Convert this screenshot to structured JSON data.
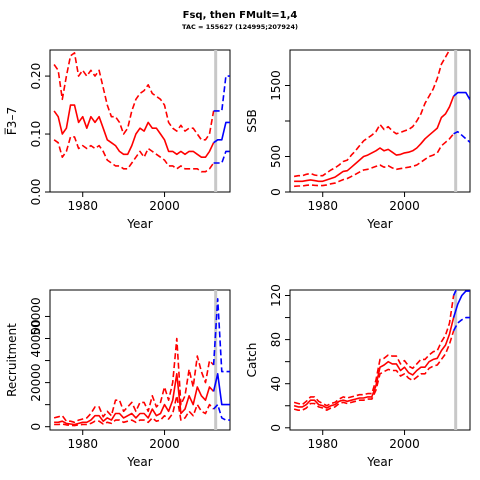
{
  "title": "Fsq, then FMult=1,4",
  "subtitle": "TAC = 155627 (124995;207924)",
  "colors": {
    "historical": "#ff0000",
    "projection": "#0000ff",
    "marker": "#c8c8c8"
  },
  "chart_data": [
    {
      "type": "line",
      "name": "fbar",
      "xlabel": "Year",
      "ylabel": "F̅3–7",
      "xlim": [
        1972,
        2016
      ],
      "ylim": [
        0,
        0.245
      ],
      "xticks": [
        1980,
        2000
      ],
      "yticks": [
        0,
        0.1,
        0.2
      ],
      "ytick_labels": [
        "0.00",
        "0.10",
        "0.20"
      ],
      "grid": false,
      "marker_year": 2012.5,
      "historical": {
        "x": [
          1973,
          1974,
          1975,
          1976,
          1977,
          1978,
          1979,
          1980,
          1981,
          1982,
          1983,
          1984,
          1985,
          1986,
          1987,
          1988,
          1989,
          1990,
          1991,
          1992,
          1993,
          1994,
          1995,
          1996,
          1997,
          1998,
          1999,
          2000,
          2001,
          2002,
          2003,
          2004,
          2005,
          2006,
          2007,
          2008,
          2009,
          2010,
          2011,
          2012
        ],
        "mid": [
          0.14,
          0.13,
          0.1,
          0.11,
          0.15,
          0.15,
          0.12,
          0.13,
          0.11,
          0.13,
          0.12,
          0.13,
          0.11,
          0.09,
          0.085,
          0.08,
          0.07,
          0.065,
          0.065,
          0.08,
          0.1,
          0.11,
          0.105,
          0.12,
          0.11,
          0.11,
          0.1,
          0.09,
          0.07,
          0.07,
          0.065,
          0.07,
          0.065,
          0.07,
          0.07,
          0.065,
          0.06,
          0.06,
          0.07,
          0.085
        ],
        "upper": [
          0.22,
          0.21,
          0.16,
          0.2,
          0.235,
          0.24,
          0.2,
          0.21,
          0.2,
          0.21,
          0.2,
          0.21,
          0.18,
          0.15,
          0.13,
          0.13,
          0.12,
          0.1,
          0.11,
          0.14,
          0.16,
          0.17,
          0.175,
          0.185,
          0.17,
          0.165,
          0.16,
          0.15,
          0.12,
          0.11,
          0.105,
          0.115,
          0.105,
          0.11,
          0.11,
          0.1,
          0.09,
          0.09,
          0.1,
          0.14
        ],
        "lower": [
          0.09,
          0.085,
          0.06,
          0.07,
          0.095,
          0.095,
          0.075,
          0.08,
          0.075,
          0.08,
          0.075,
          0.08,
          0.07,
          0.055,
          0.05,
          0.045,
          0.045,
          0.04,
          0.04,
          0.05,
          0.06,
          0.07,
          0.06,
          0.075,
          0.07,
          0.065,
          0.06,
          0.055,
          0.045,
          0.045,
          0.04,
          0.045,
          0.04,
          0.04,
          0.04,
          0.04,
          0.035,
          0.035,
          0.04,
          0.05
        ]
      },
      "projection": {
        "x": [
          2012,
          2013,
          2014,
          2015,
          2016
        ],
        "mid": [
          0.085,
          0.09,
          0.09,
          0.12,
          0.12
        ],
        "upper": [
          0.14,
          0.14,
          0.14,
          0.2,
          0.2
        ],
        "lower": [
          0.05,
          0.05,
          0.05,
          0.07,
          0.07
        ]
      }
    },
    {
      "type": "line",
      "name": "ssb",
      "xlabel": "Year",
      "ylabel": "SSB",
      "xlim": [
        1972,
        2016
      ],
      "ylim": [
        0,
        2000
      ],
      "xticks": [
        1980,
        2000
      ],
      "yticks": [
        0,
        500,
        1000,
        1500
      ],
      "ytick_labels": [
        "0",
        "500",
        "",
        "1500"
      ],
      "grid": false,
      "marker_year": 2012.5,
      "historical": {
        "x": [
          1973,
          1974,
          1975,
          1976,
          1977,
          1978,
          1979,
          1980,
          1981,
          1982,
          1983,
          1984,
          1985,
          1986,
          1987,
          1988,
          1989,
          1990,
          1991,
          1992,
          1993,
          1994,
          1995,
          1996,
          1997,
          1998,
          1999,
          2000,
          2001,
          2002,
          2003,
          2004,
          2005,
          2006,
          2007,
          2008,
          2009,
          2010,
          2011,
          2012
        ],
        "mid": [
          150,
          150,
          150,
          160,
          170,
          160,
          150,
          150,
          170,
          190,
          210,
          250,
          290,
          300,
          350,
          400,
          450,
          500,
          520,
          550,
          580,
          620,
          580,
          600,
          560,
          520,
          530,
          550,
          560,
          580,
          620,
          680,
          750,
          800,
          850,
          900,
          1050,
          1100,
          1200,
          1350
        ],
        "upper": [
          220,
          230,
          230,
          250,
          260,
          240,
          230,
          230,
          270,
          310,
          340,
          380,
          430,
          450,
          520,
          580,
          650,
          720,
          760,
          800,
          850,
          950,
          880,
          920,
          860,
          820,
          840,
          860,
          880,
          920,
          1000,
          1100,
          1250,
          1350,
          1450,
          1600,
          1800,
          1900,
          2000,
          2150
        ],
        "lower": [
          80,
          85,
          85,
          95,
          100,
          95,
          90,
          90,
          100,
          115,
          125,
          150,
          175,
          190,
          220,
          250,
          280,
          310,
          320,
          340,
          360,
          380,
          350,
          370,
          340,
          320,
          330,
          340,
          350,
          360,
          380,
          420,
          460,
          500,
          520,
          550,
          650,
          700,
          750,
          820
        ]
      },
      "projection": {
        "x": [
          2012,
          2013,
          2014,
          2015,
          2016
        ],
        "mid": [
          1350,
          1400,
          1400,
          1400,
          1300
        ],
        "upper": [
          2150,
          2200,
          2200,
          2150,
          2050
        ],
        "lower": [
          820,
          850,
          800,
          750,
          700
        ]
      }
    },
    {
      "type": "line",
      "name": "recruitment",
      "xlabel": "Year",
      "ylabel": "Recruitment",
      "xlim": [
        1972,
        2016
      ],
      "ylim": [
        -1500,
        62000
      ],
      "xticks": [
        1980,
        2000
      ],
      "yticks": [
        0,
        10000,
        20000,
        30000,
        40000,
        50000
      ],
      "ytick_labels": [
        "0",
        "",
        "20000",
        "",
        "40000",
        "50000"
      ],
      "grid": false,
      "marker_year": 2012.5,
      "historical": {
        "x": [
          1973,
          1974,
          1975,
          1976,
          1977,
          1978,
          1979,
          1980,
          1981,
          1982,
          1983,
          1984,
          1985,
          1986,
          1987,
          1988,
          1989,
          1990,
          1991,
          1992,
          1993,
          1994,
          1995,
          1996,
          1997,
          1998,
          1999,
          2000,
          2001,
          2002,
          2003,
          2004,
          2005,
          2006,
          2007,
          2008,
          2009,
          2010,
          2011,
          2012
        ],
        "mid": [
          2000,
          2000,
          2500,
          1500,
          1200,
          1000,
          1500,
          2000,
          2000,
          3000,
          5000,
          5000,
          2500,
          4000,
          3000,
          6000,
          6000,
          4000,
          5000,
          6000,
          4000,
          6000,
          6000,
          4000,
          8000,
          5000,
          6000,
          10000,
          7000,
          12000,
          24000,
          6000,
          8000,
          14000,
          10000,
          18000,
          14000,
          12000,
          18000,
          16000
        ],
        "upper": [
          4000,
          4500,
          5000,
          2500,
          2500,
          2000,
          3000,
          3500,
          4000,
          6000,
          9000,
          9000,
          4500,
          7000,
          5000,
          12000,
          12000,
          7000,
          9000,
          11000,
          7000,
          11000,
          11000,
          7000,
          14000,
          9000,
          11000,
          18000,
          12000,
          20000,
          40000,
          10000,
          14000,
          26000,
          18000,
          32000,
          25000,
          20000,
          30000,
          28000
        ],
        "lower": [
          1000,
          1000,
          1200,
          800,
          600,
          500,
          800,
          1000,
          1000,
          1500,
          2500,
          2500,
          1200,
          2000,
          1500,
          3000,
          3000,
          2000,
          2500,
          3000,
          2000,
          3000,
          3000,
          2000,
          4000,
          2500,
          3000,
          5000,
          3500,
          6000,
          14000,
          3000,
          4000,
          7000,
          5000,
          10000,
          7000,
          6000,
          10000,
          8000
        ]
      },
      "projection": {
        "x": [
          2012,
          2013,
          2014,
          2015,
          2016
        ],
        "mid": [
          16000,
          24000,
          10000,
          10000,
          10000
        ],
        "upper": [
          28000,
          58000,
          25000,
          25000,
          25000
        ],
        "lower": [
          8000,
          10000,
          4000,
          3000,
          3000
        ]
      }
    },
    {
      "type": "line",
      "name": "catch",
      "xlabel": "Year",
      "ylabel": "Catch",
      "xlim": [
        1972,
        2016
      ],
      "ylim": [
        -2,
        125
      ],
      "xticks": [
        1980,
        2000
      ],
      "yticks": [
        0,
        20,
        40,
        60,
        80,
        100,
        120
      ],
      "ytick_labels": [
        "0",
        "",
        "40",
        "",
        "80",
        "",
        "120"
      ],
      "grid": false,
      "marker_year": 2012.5,
      "historical": {
        "x": [
          1973,
          1974,
          1975,
          1976,
          1977,
          1978,
          1979,
          1980,
          1981,
          1982,
          1983,
          1984,
          1985,
          1986,
          1987,
          1988,
          1989,
          1990,
          1991,
          1992,
          1993,
          1994,
          1995,
          1996,
          1997,
          1998,
          1999,
          2000,
          2001,
          2002,
          2003,
          2004,
          2005,
          2006,
          2007,
          2008,
          2009,
          2010,
          2011,
          2012
        ],
        "mid": [
          20,
          19,
          19,
          21,
          25,
          25,
          21,
          20,
          18,
          20,
          21,
          24,
          25,
          24,
          25,
          26,
          27,
          27,
          28,
          28,
          38,
          55,
          57,
          60,
          58,
          58,
          52,
          55,
          50,
          48,
          52,
          55,
          55,
          60,
          62,
          63,
          70,
          75,
          85,
          100
        ],
        "upper": [
          23,
          22,
          21,
          24,
          28,
          28,
          24,
          22,
          20,
          22,
          23,
          26,
          28,
          27,
          28,
          29,
          30,
          30,
          31,
          31,
          43,
          62,
          63,
          66,
          65,
          65,
          58,
          61,
          56,
          54,
          58,
          62,
          62,
          66,
          69,
          70,
          78,
          84,
          95,
          120
        ],
        "lower": [
          17,
          16,
          16,
          18,
          22,
          22,
          19,
          18,
          16,
          18,
          19,
          22,
          23,
          22,
          23,
          24,
          25,
          25,
          26,
          26,
          34,
          49,
          51,
          53,
          52,
          52,
          47,
          49,
          45,
          43,
          46,
          49,
          49,
          54,
          56,
          57,
          62,
          67,
          76,
          88
        ]
      },
      "projection": {
        "x": [
          2012,
          2013,
          2014,
          2015,
          2016
        ],
        "mid": [
          100,
          112,
          120,
          124,
          124
        ],
        "upper": [
          120,
          128,
          132,
          132,
          132
        ],
        "lower": [
          88,
          95,
          98,
          100,
          100
        ]
      }
    }
  ]
}
